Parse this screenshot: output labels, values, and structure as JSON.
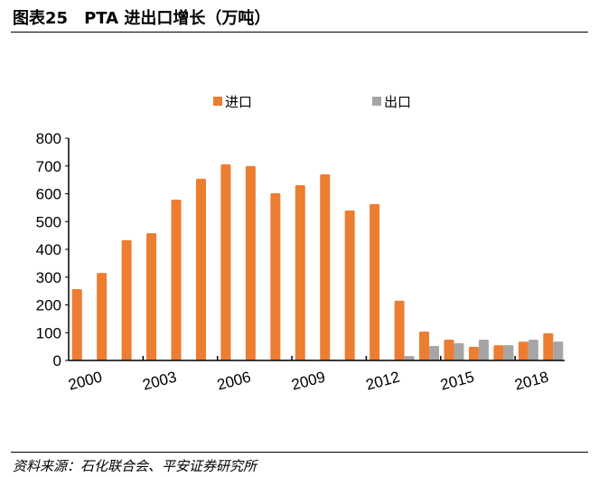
{
  "header": {
    "figure_no": "图表25",
    "title": "PTA 进出口增长（万吨）"
  },
  "source": "资料来源：石化联合会、平安证券研究所",
  "chart_data": {
    "type": "bar",
    "categories": [
      "2000",
      "2001",
      "2002",
      "2003",
      "2004",
      "2005",
      "2006",
      "2007",
      "2008",
      "2009",
      "2010",
      "2011",
      "2012",
      "2013",
      "2014",
      "2015",
      "2016",
      "2017",
      "2018",
      "2019"
    ],
    "xtick_labels": [
      "2000",
      "2003",
      "2006",
      "2009",
      "2012",
      "2015",
      "2018"
    ],
    "series": [
      {
        "name": "进口",
        "color": "#ED7D31",
        "values": [
          257,
          315,
          433,
          458,
          579,
          654,
          706,
          700,
          602,
          631,
          670,
          540,
          563,
          215,
          104,
          75,
          49,
          55,
          68,
          98
        ]
      },
      {
        "name": "出口",
        "color": "#A5A5A5",
        "values": [
          0,
          0,
          0,
          0,
          0,
          0,
          0,
          0,
          3,
          3,
          3,
          3,
          0,
          16,
          52,
          62,
          75,
          55,
          75,
          68
        ]
      }
    ],
    "yticks": [
      0,
      100,
      200,
      300,
      400,
      500,
      600,
      700,
      800
    ],
    "ylim": [
      0,
      800
    ],
    "legend": "top-center",
    "grid": false
  }
}
